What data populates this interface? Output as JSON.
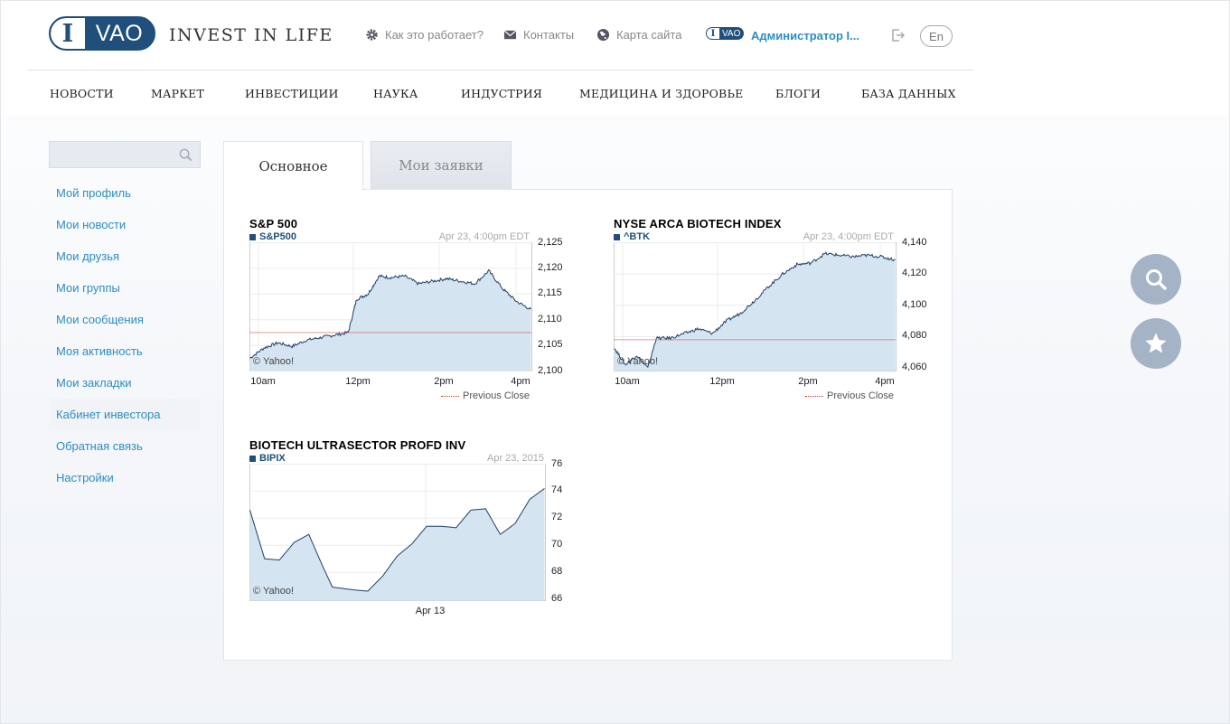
{
  "header": {
    "logo_i": "I",
    "logo_vao": "VAO",
    "tagline": "INVEST IN LIFE",
    "links": [
      {
        "label": "Как это работает?",
        "icon": "gear-icon"
      },
      {
        "label": "Контакты",
        "icon": "mail-icon"
      },
      {
        "label": "Карта сайта",
        "icon": "globe-icon"
      }
    ],
    "mini_logo_i": "I",
    "mini_logo_vao": "VAO",
    "user": "Администратор I...",
    "lang": "En"
  },
  "nav": [
    "НОВОСТИ",
    "МАРКЕТ",
    "ИНВЕСТИЦИИ",
    "НАУКА",
    "ИНДУСТРИЯ",
    "МЕДИЦИНА И ЗДОРОВЬЕ",
    "БЛОГИ",
    "БАЗА ДАННЫХ"
  ],
  "sidebar": {
    "search_placeholder": "",
    "items": [
      {
        "label": "Мой профиль",
        "active": false
      },
      {
        "label": "Мои новости",
        "active": false
      },
      {
        "label": "Мои друзья",
        "active": false
      },
      {
        "label": "Мои группы",
        "active": false
      },
      {
        "label": "Мои сообщения",
        "active": false
      },
      {
        "label": "Моя активность",
        "active": false
      },
      {
        "label": "Мои закладки",
        "active": false
      },
      {
        "label": "Кабинет инвестора",
        "active": true
      },
      {
        "label": "Обратная связь",
        "active": false
      },
      {
        "label": "Настройки",
        "active": false
      }
    ]
  },
  "tabs": [
    {
      "label": "Основное",
      "active": true
    },
    {
      "label": "Мои заявки",
      "active": false
    }
  ],
  "colors": {
    "accent": "#2b8ec3",
    "brand": "#1f4f7a",
    "chart_fill": "#d4e4f0",
    "prev_close": "#c0392b"
  },
  "chart_data": [
    {
      "type": "area",
      "title": "S&P 500",
      "symbol": "S&P500",
      "timestamp": "Apr 23, 4:00pm EDT",
      "copyright": "© Yahoo!",
      "legend": "Previous Close",
      "x_ticks": [
        "10am",
        "12pm",
        "2pm",
        "4pm"
      ],
      "y_ticks": [
        "2,125",
        "2,120",
        "2,115",
        "2,110",
        "2,105",
        "2,100"
      ],
      "ylim": [
        2100,
        2125
      ],
      "previous_close": 2107.5,
      "x": [
        0,
        0.05,
        0.1,
        0.15,
        0.2,
        0.25,
        0.3,
        0.35,
        0.38,
        0.42,
        0.46,
        0.5,
        0.55,
        0.6,
        0.65,
        0.7,
        0.75,
        0.8,
        0.85,
        0.9,
        0.95,
        1.0
      ],
      "values": [
        2102.5,
        2104.5,
        2105.5,
        2104.8,
        2106,
        2106.5,
        2107,
        2107.5,
        2114,
        2115,
        2118.5,
        2118.2,
        2118.5,
        2117,
        2117.5,
        2118,
        2117.5,
        2117,
        2119.5,
        2116,
        2113.5,
        2112
      ],
      "series": [
        {
          "values": [
            2102.5,
            2104.5,
            2105.5,
            2104.8,
            2106,
            2106.5,
            2107,
            2107.5,
            2114,
            2115,
            2118.5,
            2118.2,
            2118.5,
            2117,
            2117.5,
            2118,
            2117.5,
            2117,
            2119.5,
            2116,
            2113.5,
            2112
          ]
        }
      ]
    },
    {
      "type": "area",
      "title": "NYSE ARCA BIOTECH INDEX",
      "symbol": "^BTK",
      "timestamp": "Apr 23, 4:00pm EDT",
      "copyright": "© Yahoo!",
      "legend": "Previous Close",
      "x_ticks": [
        "10am",
        "12pm",
        "2pm",
        "4pm"
      ],
      "y_ticks": [
        "4,140",
        "4,120",
        "4,100",
        "4,080",
        "4,060"
      ],
      "ylim": [
        4058,
        4140
      ],
      "previous_close": 4078,
      "x": [
        0,
        0.04,
        0.08,
        0.12,
        0.15,
        0.2,
        0.25,
        0.3,
        0.35,
        0.4,
        0.45,
        0.5,
        0.55,
        0.6,
        0.65,
        0.7,
        0.75,
        0.8,
        0.85,
        0.9,
        0.95,
        1.0
      ],
      "values": [
        4073,
        4062,
        4068,
        4060,
        4079,
        4079,
        4082,
        4085,
        4082,
        4090,
        4095,
        4103,
        4112,
        4120,
        4126,
        4127,
        4133,
        4132,
        4131,
        4132,
        4131,
        4129
      ],
      "series": [
        {
          "values": [
            4073,
            4062,
            4068,
            4060,
            4079,
            4079,
            4082,
            4085,
            4082,
            4090,
            4095,
            4103,
            4112,
            4120,
            4126,
            4127,
            4133,
            4132,
            4131,
            4132,
            4131,
            4129
          ]
        }
      ]
    },
    {
      "type": "area",
      "title": "BIOTECH ULTRASECTOR PROFD INV",
      "symbol": "BIPIX",
      "timestamp": "Apr 23, 2015",
      "copyright": "© Yahoo!",
      "x_ticks": [
        "Apr 13"
      ],
      "y_ticks": [
        "76",
        "74",
        "72",
        "70",
        "68",
        "66"
      ],
      "ylim": [
        65.9,
        76
      ],
      "x": [
        0,
        0.05,
        0.1,
        0.15,
        0.2,
        0.25,
        0.28,
        0.35,
        0.4,
        0.45,
        0.5,
        0.55,
        0.6,
        0.65,
        0.7,
        0.75,
        0.8,
        0.85,
        0.9,
        0.95,
        1.0
      ],
      "values": [
        72.6,
        69,
        68.9,
        70.2,
        70.8,
        68.3,
        66.9,
        66.7,
        66.6,
        67.7,
        69.2,
        70.1,
        71.4,
        71.4,
        71.3,
        72.6,
        72.7,
        70.8,
        71.6,
        73.4,
        74.2
      ],
      "series": [
        {
          "values": [
            72.6,
            69,
            68.9,
            70.2,
            70.8,
            68.3,
            66.9,
            66.7,
            66.6,
            67.7,
            69.2,
            70.1,
            71.4,
            71.4,
            71.3,
            72.6,
            72.7,
            70.8,
            71.6,
            73.4,
            74.2
          ]
        }
      ]
    }
  ],
  "fabs": [
    {
      "icon": "search-icon"
    },
    {
      "icon": "star-icon"
    }
  ]
}
